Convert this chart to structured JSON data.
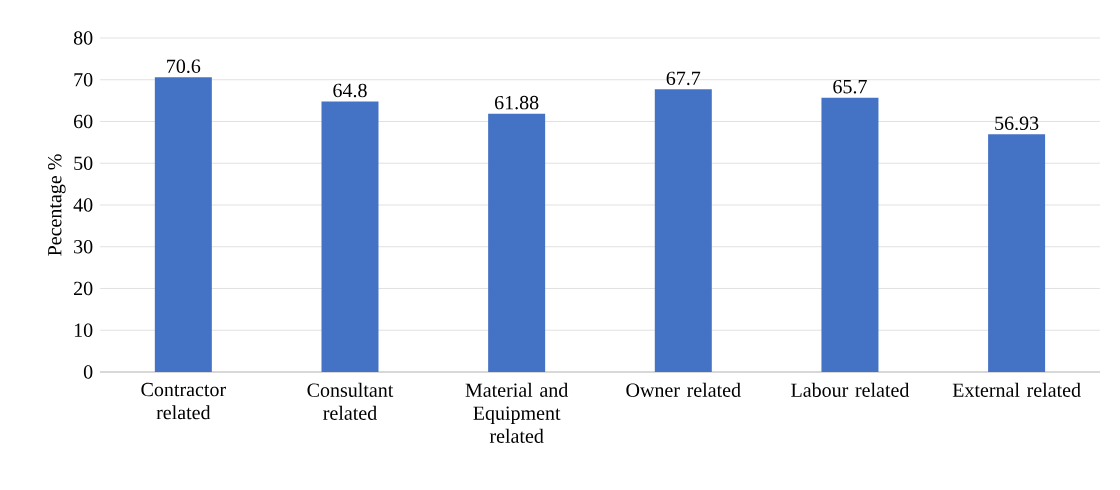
{
  "chart_data": {
    "type": "bar",
    "ylabel": "Pecentage %",
    "categories": [
      "Contractor related",
      "Consultant related",
      "Material and Equipment related",
      "Owner related",
      "Labour related",
      "External related"
    ],
    "values": [
      70.6,
      64.8,
      61.88,
      67.7,
      65.7,
      56.93
    ],
    "color": "#4472c4",
    "ylim": [
      0,
      80
    ],
    "yticks": [
      0,
      10,
      20,
      30,
      40,
      50,
      60,
      70,
      80
    ],
    "grid": "y",
    "data_labels": true
  }
}
